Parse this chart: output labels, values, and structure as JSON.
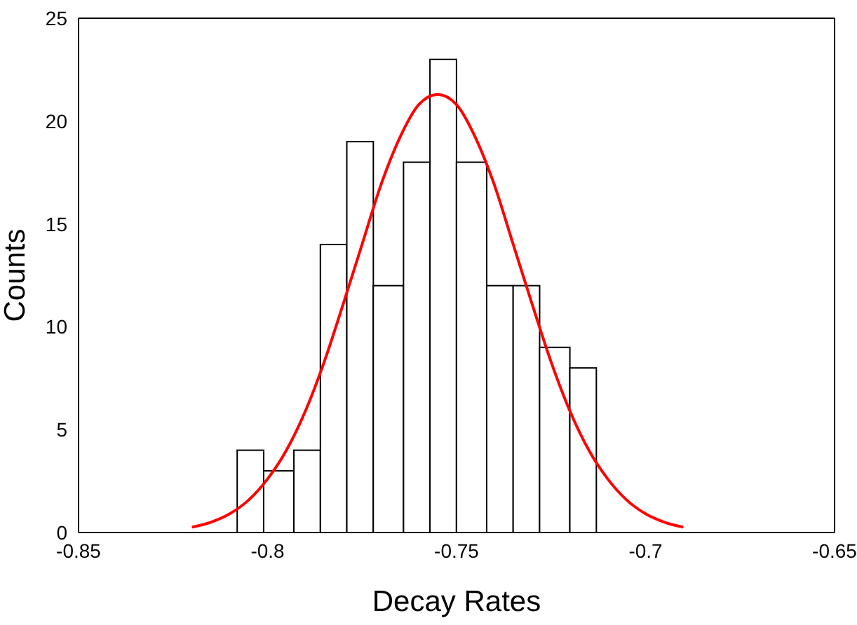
{
  "chart_data": {
    "type": "histogram",
    "xlabel": "Decay Rates",
    "ylabel": "Counts",
    "bins": [
      -0.808,
      -0.801,
      -0.793,
      -0.786,
      -0.779,
      -0.772,
      -0.764,
      -0.757,
      -0.75,
      -0.742,
      -0.735,
      -0.728,
      -0.72,
      -0.713
    ],
    "values": [
      4,
      3,
      4,
      14,
      19,
      12,
      18,
      23,
      18,
      12,
      12,
      9,
      8
    ],
    "color": "#ffffff",
    "series": [
      {
        "type": "line",
        "color": "#ff0000",
        "x": [
          -0.82,
          -0.815,
          -0.81,
          -0.805,
          -0.8,
          -0.795,
          -0.79,
          -0.785,
          -0.78,
          -0.775,
          -0.77,
          -0.765,
          -0.76,
          -0.755,
          -0.75,
          -0.745,
          -0.74,
          -0.735,
          -0.73,
          -0.725,
          -0.72,
          -0.715,
          -0.71,
          -0.705,
          -0.7,
          -0.695,
          -0.69
        ],
        "values": [
          0.26,
          0.5,
          0.91,
          1.58,
          2.6,
          4.0,
          5.9,
          8.3,
          11.1,
          14.0,
          16.9,
          19.2,
          20.8,
          21.3,
          20.8,
          19.2,
          16.9,
          14.0,
          11.1,
          8.3,
          5.9,
          4.0,
          2.6,
          1.58,
          0.91,
          0.5,
          0.26
        ]
      }
    ],
    "xlim": [
      -0.85,
      -0.65
    ],
    "xticks": [
      -0.85,
      -0.8,
      -0.75,
      -0.7,
      -0.65
    ],
    "ylim": [
      0,
      25
    ],
    "yticks": [
      0,
      5,
      10,
      15,
      20,
      25
    ]
  }
}
